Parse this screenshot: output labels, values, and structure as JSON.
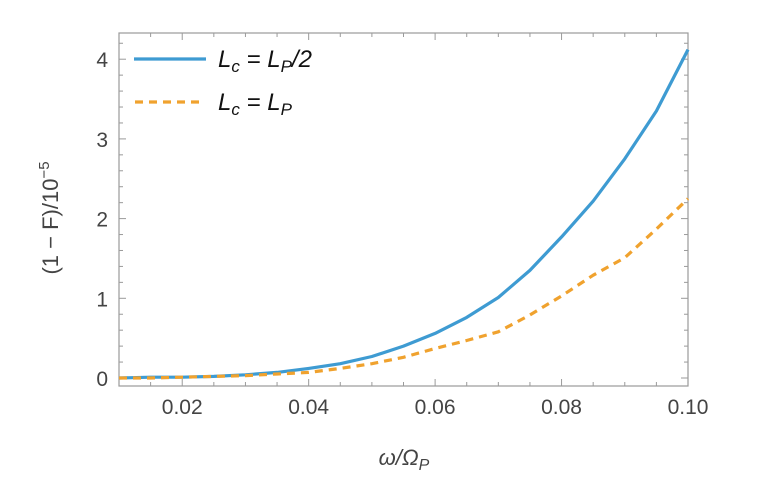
{
  "chart_data": {
    "type": "line",
    "title": "",
    "xlabel": "ω/Ω_P",
    "ylabel": "(1 − F)/10^−5",
    "xlim": [
      0.01,
      0.1
    ],
    "ylim": [
      -0.1,
      4.3
    ],
    "x_ticks": [
      "0.02",
      "0.04",
      "0.06",
      "0.08",
      "0.10"
    ],
    "y_ticks": [
      "0",
      "1",
      "2",
      "3",
      "4"
    ],
    "grid": false,
    "legend_position": "upper-left-inside",
    "x": [
      0.01,
      0.015,
      0.02,
      0.025,
      0.03,
      0.035,
      0.04,
      0.045,
      0.05,
      0.055,
      0.06,
      0.065,
      0.07,
      0.075,
      0.08,
      0.085,
      0.09,
      0.095,
      0.1
    ],
    "series": [
      {
        "name": "L_c = L_P/2",
        "style": "solid",
        "color": "#3E9BD2",
        "values": [
          0.0,
          0.01,
          0.01,
          0.02,
          0.04,
          0.07,
          0.12,
          0.18,
          0.27,
          0.4,
          0.56,
          0.76,
          1.01,
          1.35,
          1.77,
          2.22,
          2.75,
          3.35,
          4.12
        ]
      },
      {
        "name": "L_c = L_P",
        "style": "dashed",
        "color": "#F0A22E",
        "values": [
          0.0,
          0.0,
          0.01,
          0.02,
          0.03,
          0.05,
          0.07,
          0.12,
          0.18,
          0.26,
          0.37,
          0.47,
          0.58,
          0.79,
          1.03,
          1.29,
          1.51,
          1.87,
          2.25
        ]
      }
    ]
  },
  "legend": {
    "items": [
      {
        "main": "L",
        "sub": "c",
        "eq": " = L",
        "sub2": "P",
        "tail": "/2"
      },
      {
        "main": "L",
        "sub": "c",
        "eq": " = L",
        "sub2": "P",
        "tail": ""
      }
    ]
  },
  "axes": {
    "xlabel_omega": "ω",
    "xlabel_slash": "/",
    "xlabel_Omega": "Ω",
    "xlabel_sub": "P",
    "ylabel_main": "(1 − F)/10",
    "ylabel_sup": "−5"
  }
}
